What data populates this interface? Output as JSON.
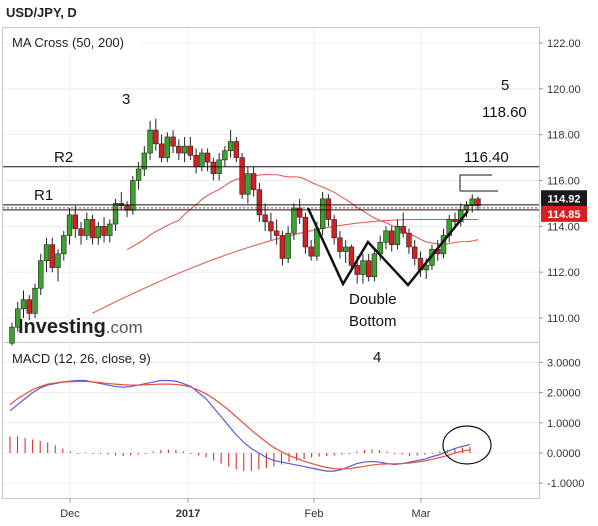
{
  "chart_data": [
    {
      "type": "candlestick",
      "title": "USD/JPY, D",
      "indicator": "MA Cross (50, 200)",
      "watermark": "Investing.com",
      "ylim": [
        108.5,
        123.0
      ],
      "y_ticks": [
        "110.00",
        "112.00",
        "114.00",
        "116.00",
        "118.00",
        "120.00",
        "122.00"
      ],
      "x_ticks": [
        "Dec",
        "2017",
        "Feb",
        "Mar"
      ],
      "price_tags": [
        {
          "label": "114.92",
          "value": 114.92,
          "color": "#1a1a1a"
        },
        {
          "label": "114.85",
          "value": 114.85,
          "color": "#d42020"
        }
      ],
      "horizontal_lines": [
        {
          "label": "R2",
          "value": 116.6
        },
        {
          "label": "R1",
          "value": 114.85
        }
      ],
      "annotations": [
        "3",
        "5",
        "118.60",
        "116.40",
        "Double",
        "Bottom"
      ],
      "candles": [
        [
          108.9,
          109.8,
          108.8,
          109.6
        ],
        [
          109.6,
          110.7,
          109.4,
          110.4
        ],
        [
          110.4,
          111.2,
          110.0,
          110.8
        ],
        [
          110.8,
          111.0,
          109.9,
          110.2
        ],
        [
          110.2,
          111.5,
          110.0,
          111.3
        ],
        [
          111.3,
          112.8,
          111.0,
          112.5
        ],
        [
          112.5,
          113.5,
          112.0,
          113.2
        ],
        [
          113.2,
          113.5,
          112.0,
          112.2
        ],
        [
          112.2,
          113.0,
          111.6,
          112.8
        ],
        [
          112.8,
          113.8,
          112.5,
          113.6
        ],
        [
          113.6,
          114.8,
          113.2,
          114.5
        ],
        [
          114.5,
          114.9,
          113.5,
          113.9
        ],
        [
          113.9,
          114.2,
          113.2,
          113.6
        ],
        [
          113.6,
          114.6,
          113.4,
          114.3
        ],
        [
          114.3,
          114.5,
          113.2,
          113.5
        ],
        [
          113.5,
          114.2,
          113.2,
          114.0
        ],
        [
          114.0,
          114.4,
          113.3,
          113.6
        ],
        [
          113.6,
          114.3,
          113.3,
          114.1
        ],
        [
          114.1,
          115.2,
          113.8,
          115.0
        ],
        [
          115.0,
          115.5,
          114.7,
          114.9
        ],
        [
          114.9,
          115.1,
          114.4,
          114.7
        ],
        [
          114.7,
          116.2,
          114.5,
          116.0
        ],
        [
          116.0,
          116.8,
          115.6,
          116.5
        ],
        [
          116.5,
          117.5,
          116.2,
          117.2
        ],
        [
          117.2,
          118.6,
          116.9,
          118.2
        ],
        [
          118.2,
          118.7,
          117.3,
          117.6
        ],
        [
          117.6,
          118.0,
          116.8,
          117.0
        ],
        [
          117.0,
          118.1,
          116.8,
          117.9
        ],
        [
          117.9,
          118.2,
          117.2,
          117.5
        ],
        [
          117.5,
          117.8,
          116.9,
          117.2
        ],
        [
          117.2,
          117.9,
          116.8,
          117.5
        ],
        [
          117.5,
          117.9,
          116.9,
          117.1
        ],
        [
          117.1,
          117.4,
          116.3,
          116.6
        ],
        [
          116.6,
          117.4,
          116.4,
          117.2
        ],
        [
          117.2,
          117.4,
          116.4,
          116.8
        ],
        [
          116.8,
          117.0,
          116.0,
          116.3
        ],
        [
          116.3,
          117.2,
          116.0,
          116.9
        ],
        [
          116.9,
          117.5,
          116.6,
          117.3
        ],
        [
          117.3,
          118.2,
          117.0,
          117.7
        ],
        [
          117.7,
          117.9,
          116.8,
          117.0
        ],
        [
          117.0,
          117.2,
          115.2,
          115.4
        ],
        [
          115.4,
          116.6,
          115.0,
          116.3
        ],
        [
          116.3,
          116.6,
          115.3,
          115.6
        ],
        [
          115.6,
          115.9,
          114.2,
          114.5
        ],
        [
          114.5,
          115.0,
          113.8,
          114.2
        ],
        [
          114.2,
          114.6,
          113.4,
          113.8
        ],
        [
          113.8,
          114.3,
          113.2,
          113.6
        ],
        [
          113.6,
          113.8,
          112.3,
          112.6
        ],
        [
          112.6,
          114.0,
          112.4,
          113.7
        ],
        [
          113.7,
          115.0,
          113.4,
          114.8
        ],
        [
          114.8,
          115.2,
          114.1,
          114.4
        ],
        [
          114.4,
          114.6,
          112.8,
          113.1
        ],
        [
          113.1,
          113.4,
          112.5,
          112.7
        ],
        [
          112.7,
          114.2,
          112.5,
          113.9
        ],
        [
          113.9,
          115.5,
          113.6,
          115.2
        ],
        [
          115.2,
          115.4,
          114.0,
          114.3
        ],
        [
          114.3,
          114.5,
          113.2,
          113.5
        ],
        [
          113.5,
          113.8,
          112.6,
          112.9
        ],
        [
          112.9,
          113.4,
          112.4,
          113.1
        ],
        [
          113.1,
          113.2,
          112.0,
          112.3
        ],
        [
          112.3,
          112.7,
          111.5,
          111.9
        ],
        [
          111.9,
          112.8,
          111.5,
          112.5
        ],
        [
          112.5,
          112.8,
          111.6,
          111.8
        ],
        [
          111.8,
          113.0,
          111.6,
          112.8
        ],
        [
          112.8,
          113.6,
          112.5,
          113.3
        ],
        [
          113.3,
          114.0,
          113.0,
          113.8
        ],
        [
          113.8,
          114.0,
          112.9,
          113.2
        ],
        [
          113.2,
          114.3,
          113.0,
          114.0
        ],
        [
          114.0,
          114.6,
          113.5,
          113.7
        ],
        [
          113.7,
          113.9,
          112.8,
          113.1
        ],
        [
          113.1,
          113.4,
          112.3,
          112.6
        ],
        [
          112.6,
          112.9,
          111.8,
          112.1
        ],
        [
          112.1,
          112.6,
          111.7,
          112.3
        ],
        [
          112.3,
          113.2,
          112.1,
          113.0
        ],
        [
          113.0,
          113.4,
          112.5,
          112.8
        ],
        [
          112.8,
          113.9,
          112.6,
          113.6
        ],
        [
          113.6,
          114.5,
          113.3,
          114.3
        ],
        [
          114.3,
          114.6,
          113.9,
          114.2
        ],
        [
          114.2,
          115.0,
          114.0,
          114.7
        ],
        [
          114.7,
          115.1,
          114.4,
          114.9
        ],
        [
          114.9,
          115.4,
          114.6,
          115.2
        ],
        [
          115.2,
          115.3,
          114.7,
          114.9
        ]
      ]
    },
    {
      "type": "line",
      "title": "MACD (12, 26, close, 9)",
      "ylim": [
        -1.45,
        3.5
      ],
      "y_ticks": [
        "3.0000",
        "2.0000",
        "1.0000",
        "0.0000",
        "-1.0000"
      ],
      "annotations": [
        "4"
      ],
      "series": [
        {
          "values": [
            1.4,
            1.6,
            1.8,
            2.0,
            2.15,
            2.25,
            2.3,
            2.35,
            2.38,
            2.4,
            2.4,
            2.35,
            2.3,
            2.25,
            2.2,
            2.18,
            2.2,
            2.25,
            2.3,
            2.35,
            2.4,
            2.4,
            2.38,
            2.3,
            2.2,
            2.0,
            1.8,
            1.5,
            1.2,
            0.9,
            0.6,
            0.35,
            0.15,
            0.0,
            -0.15,
            -0.25,
            -0.3,
            -0.35,
            -0.4,
            -0.45,
            -0.5,
            -0.55,
            -0.6,
            -0.6,
            -0.55,
            -0.45,
            -0.35,
            -0.3,
            -0.28,
            -0.3,
            -0.35,
            -0.38,
            -0.35,
            -0.3,
            -0.25,
            -0.2,
            -0.12,
            -0.05,
            0.05,
            0.15,
            0.22,
            0.28
          ]
        },
        {
          "values": [
            1.6,
            1.8,
            1.95,
            2.1,
            2.2,
            2.28,
            2.32,
            2.35,
            2.36,
            2.37,
            2.37,
            2.35,
            2.33,
            2.3,
            2.28,
            2.26,
            2.25,
            2.25,
            2.26,
            2.27,
            2.28,
            2.28,
            2.27,
            2.24,
            2.18,
            2.08,
            1.96,
            1.8,
            1.62,
            1.42,
            1.2,
            0.98,
            0.76,
            0.55,
            0.36,
            0.18,
            0.04,
            -0.08,
            -0.18,
            -0.27,
            -0.35,
            -0.42,
            -0.48,
            -0.52,
            -0.53,
            -0.52,
            -0.48,
            -0.44,
            -0.4,
            -0.37,
            -0.36,
            -0.36,
            -0.35,
            -0.33,
            -0.3,
            -0.26,
            -0.21,
            -0.15,
            -0.08,
            0.0,
            0.06,
            0.11
          ]
        }
      ],
      "histogram": [
        0.55,
        0.55,
        0.5,
        0.45,
        0.4,
        0.35,
        0.25,
        0.15,
        0.05,
        0.0,
        0.02,
        0.0,
        -0.03,
        -0.05,
        -0.08,
        -0.1,
        -0.08,
        -0.05,
        0.0,
        0.05,
        0.1,
        0.12,
        0.1,
        0.05,
        0.0,
        -0.08,
        -0.15,
        -0.25,
        -0.35,
        -0.45,
        -0.55,
        -0.6,
        -0.6,
        -0.55,
        -0.5,
        -0.45,
        -0.38,
        -0.3,
        -0.25,
        -0.2,
        -0.15,
        -0.12,
        -0.1,
        -0.08,
        -0.05,
        0.0,
        0.05,
        0.1,
        0.12,
        0.1,
        0.05,
        0.0,
        -0.05,
        -0.1,
        -0.08,
        -0.05,
        0.0,
        0.05,
        0.1,
        0.15,
        0.18,
        0.2
      ]
    }
  ]
}
